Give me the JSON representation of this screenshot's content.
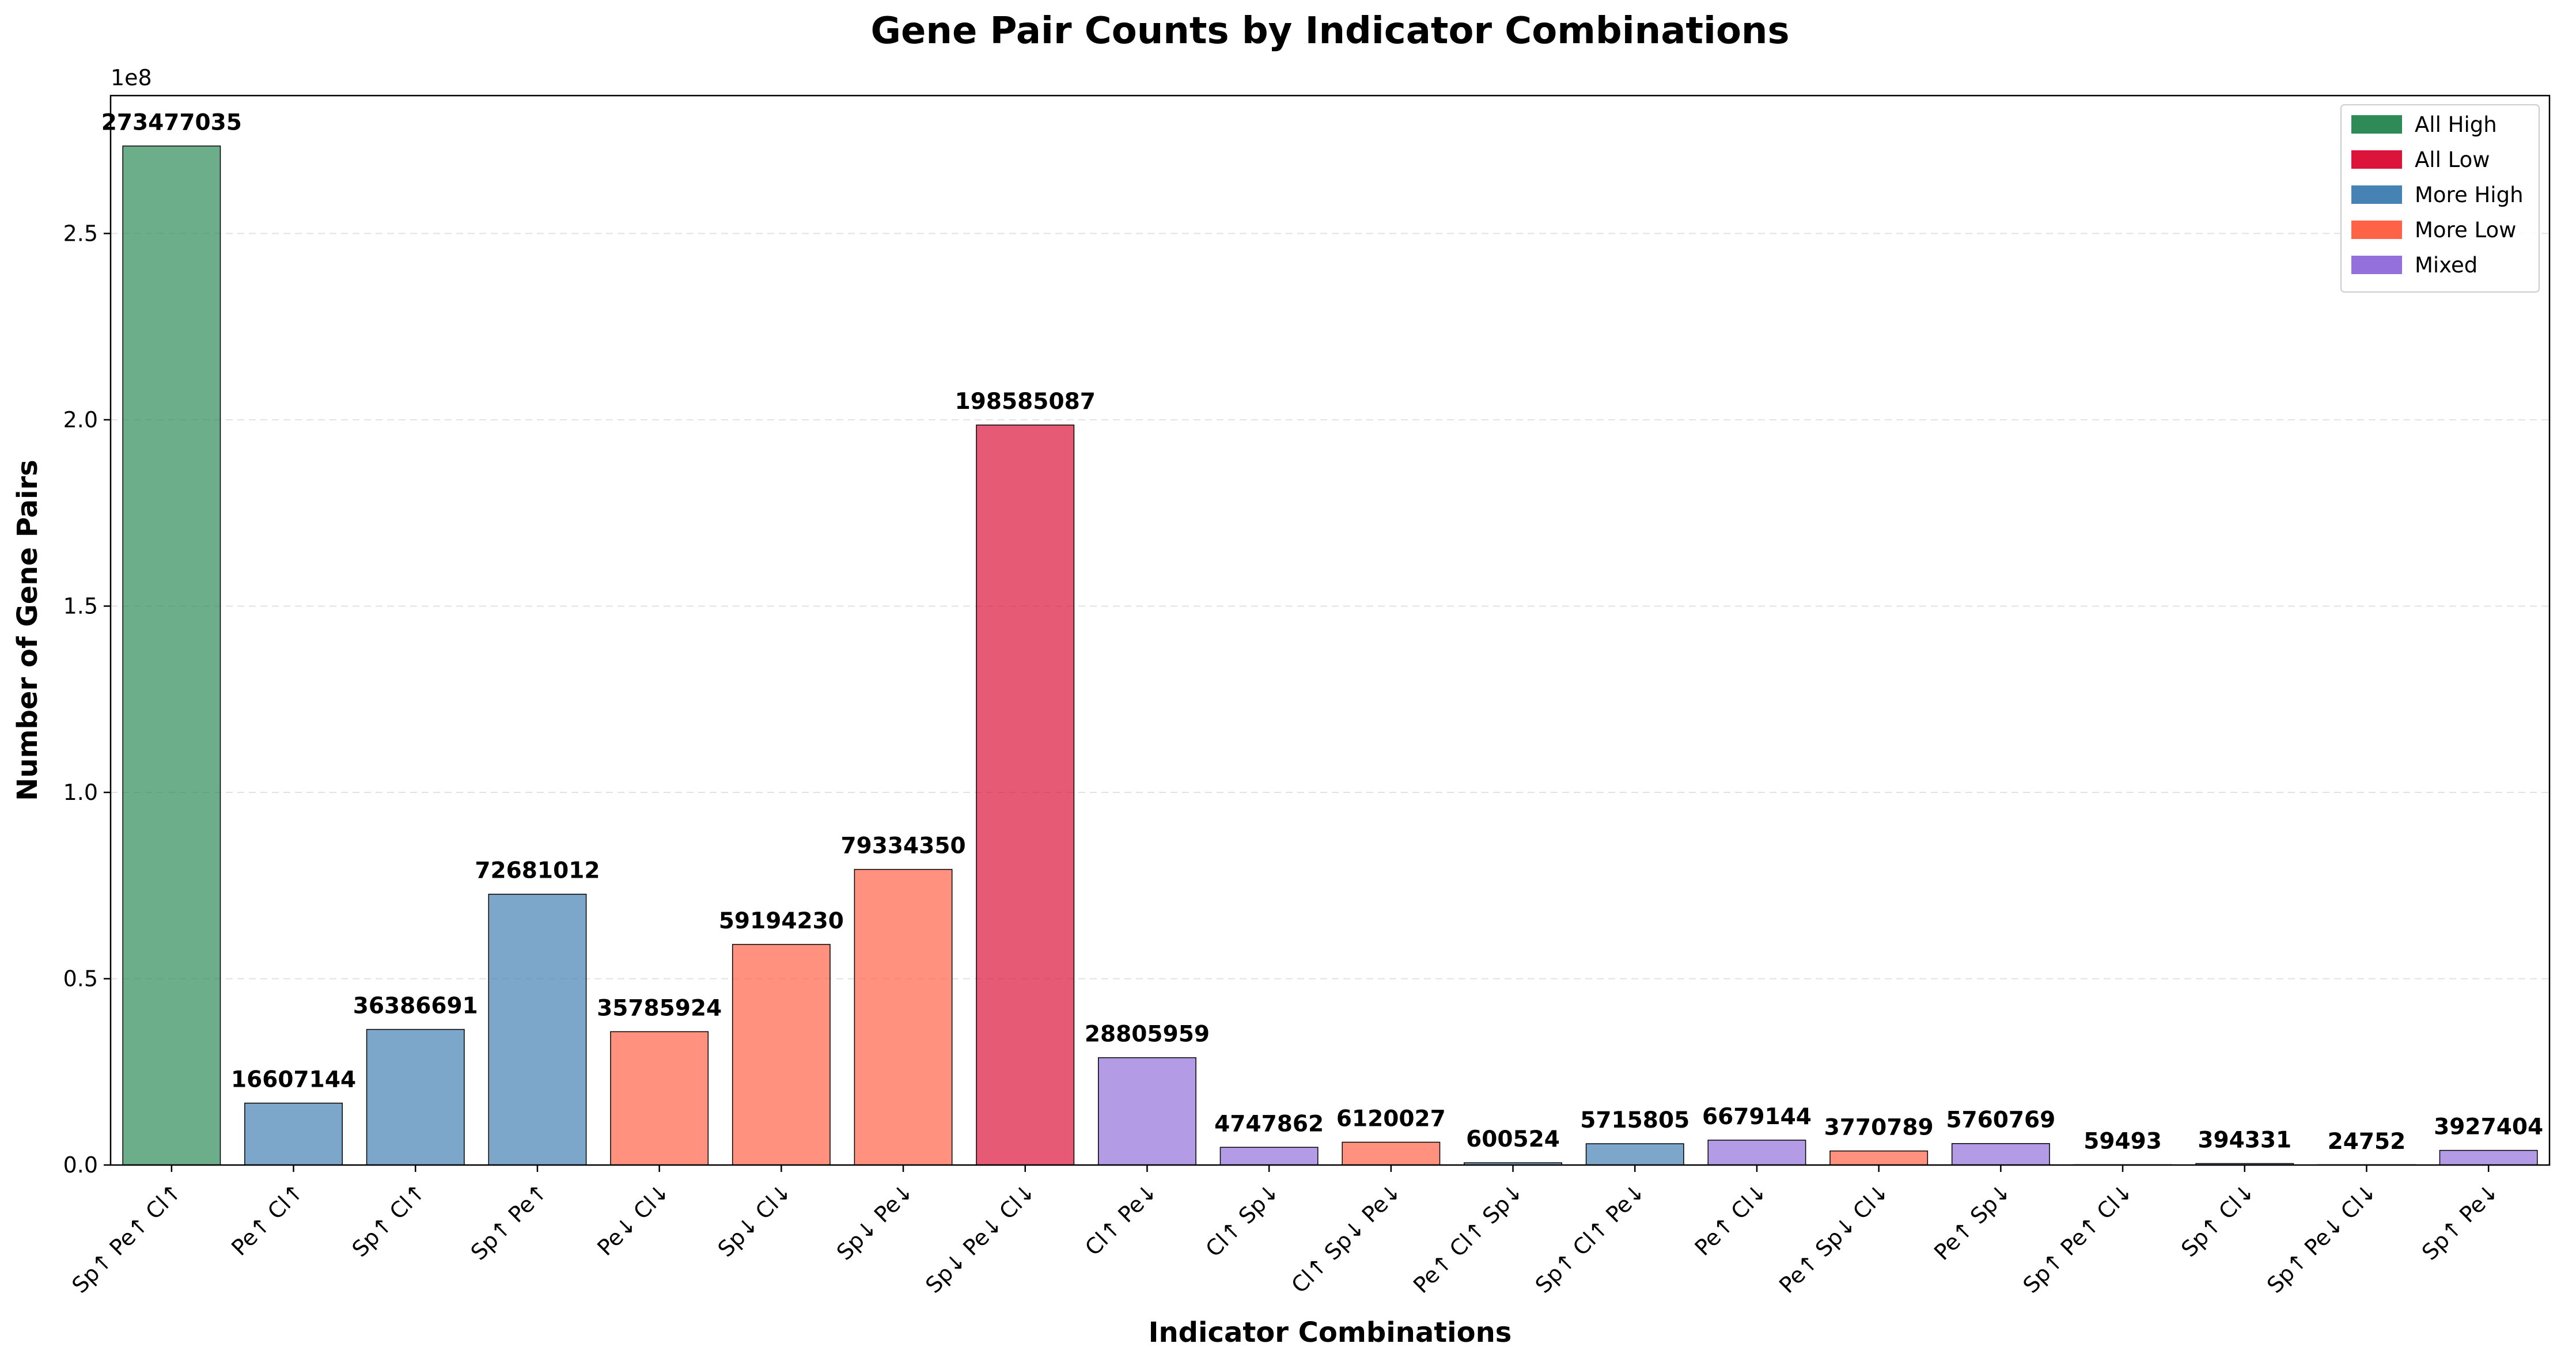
{
  "chart_data": {
    "type": "bar",
    "title": "Gene Pair Counts by Indicator Combinations",
    "xlabel": "Indicator Combinations",
    "ylabel": "Number of Gene Pairs",
    "y_offset_text": "1e8",
    "ylim": [
      0,
      287000000
    ],
    "yticks": [
      0,
      50000000,
      100000000,
      150000000,
      200000000,
      250000000
    ],
    "ytick_labels": [
      "0.0",
      "0.5",
      "1.0",
      "1.5",
      "2.0",
      "2.5"
    ],
    "grid": "y dashed",
    "legend_position": "top-right",
    "legend": [
      {
        "name": "All High",
        "color": "#2e8b57"
      },
      {
        "name": "All Low",
        "color": "#dc143c"
      },
      {
        "name": "More High",
        "color": "#4682b4"
      },
      {
        "name": "More Low",
        "color": "#ff6347"
      },
      {
        "name": "Mixed",
        "color": "#9370db"
      }
    ],
    "categories": [
      "Sp↑ Pe↑ Cl↑",
      "Pe↑ Cl↑",
      "Sp↑ Cl↑",
      "Sp↑ Pe↑",
      "Pe↓ Cl↓",
      "Sp↓ Cl↓",
      "Sp↓ Pe↓",
      "Sp↓ Pe↓ Cl↓",
      "Cl↑ Pe↓",
      "Cl↑ Sp↓",
      "Cl↑ Sp↓ Pe↓",
      "Pe↑ Cl↑ Sp↓",
      "Sp↑ Cl↑ Pe↓",
      "Pe↑ Cl↓",
      "Pe↑ Sp↓ Cl↓",
      "Pe↑ Sp↓",
      "Sp↑ Pe↑ Cl↓",
      "Sp↑ Cl↓",
      "Sp↑ Pe↓ Cl↓",
      "Sp↑ Pe↓"
    ],
    "values": [
      273477035,
      16607144,
      36386691,
      72681012,
      35785924,
      59194230,
      79334350,
      198585087,
      28805959,
      4747862,
      6120027,
      600524,
      5715805,
      6679144,
      3770789,
      5760769,
      59493,
      394331,
      24752,
      3927404
    ],
    "value_labels": [
      "273477035",
      "16607144",
      "36386691",
      "72681012",
      "35785924",
      "59194230",
      "79334350",
      "198585087",
      "28805959",
      "4747862",
      "6120027",
      "600524",
      "5715805",
      "6679144",
      "3770789",
      "5760769",
      "59493",
      "394331",
      "24752",
      "3927404"
    ],
    "groups": [
      "All High",
      "More High",
      "More High",
      "More High",
      "More Low",
      "More Low",
      "More Low",
      "All Low",
      "Mixed",
      "Mixed",
      "More Low",
      "More High",
      "More High",
      "Mixed",
      "More Low",
      "Mixed",
      "Mixed",
      "Mixed",
      "Mixed",
      "Mixed"
    ]
  }
}
